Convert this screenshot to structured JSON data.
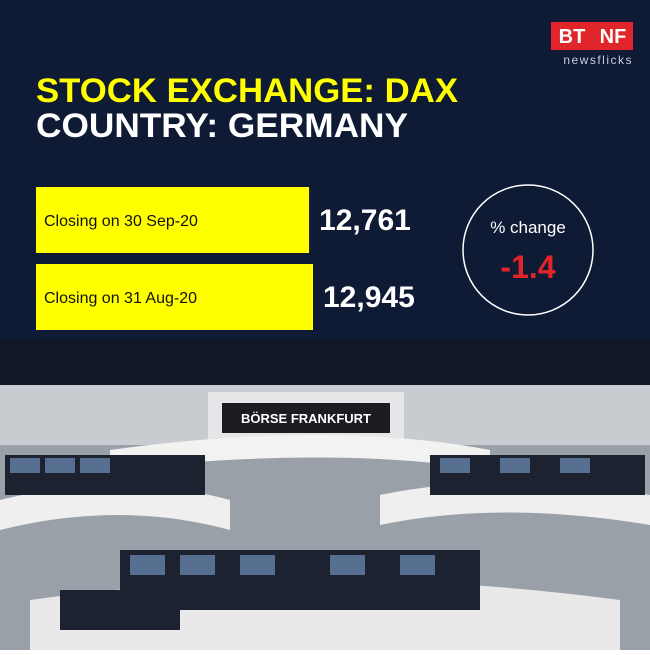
{
  "brand": {
    "logo_left": "BT",
    "logo_right": "NF",
    "tagline": "newsflicks"
  },
  "headline": {
    "line1": "STOCK EXCHANGE: DAX",
    "line2": "COUNTRY: GERMANY"
  },
  "chart_data": {
    "type": "bar",
    "orientation": "horizontal",
    "color": "#ffff00",
    "categories": [
      "Closing on 30 Sep-20",
      "Closing on 31 Aug-20"
    ],
    "values": [
      12761,
      12945
    ],
    "value_labels": [
      "12,761",
      "12,945"
    ]
  },
  "change": {
    "label": "% change",
    "value": -1.4
  },
  "photo": {
    "sign": "BÖRSE FRANKFURT"
  }
}
